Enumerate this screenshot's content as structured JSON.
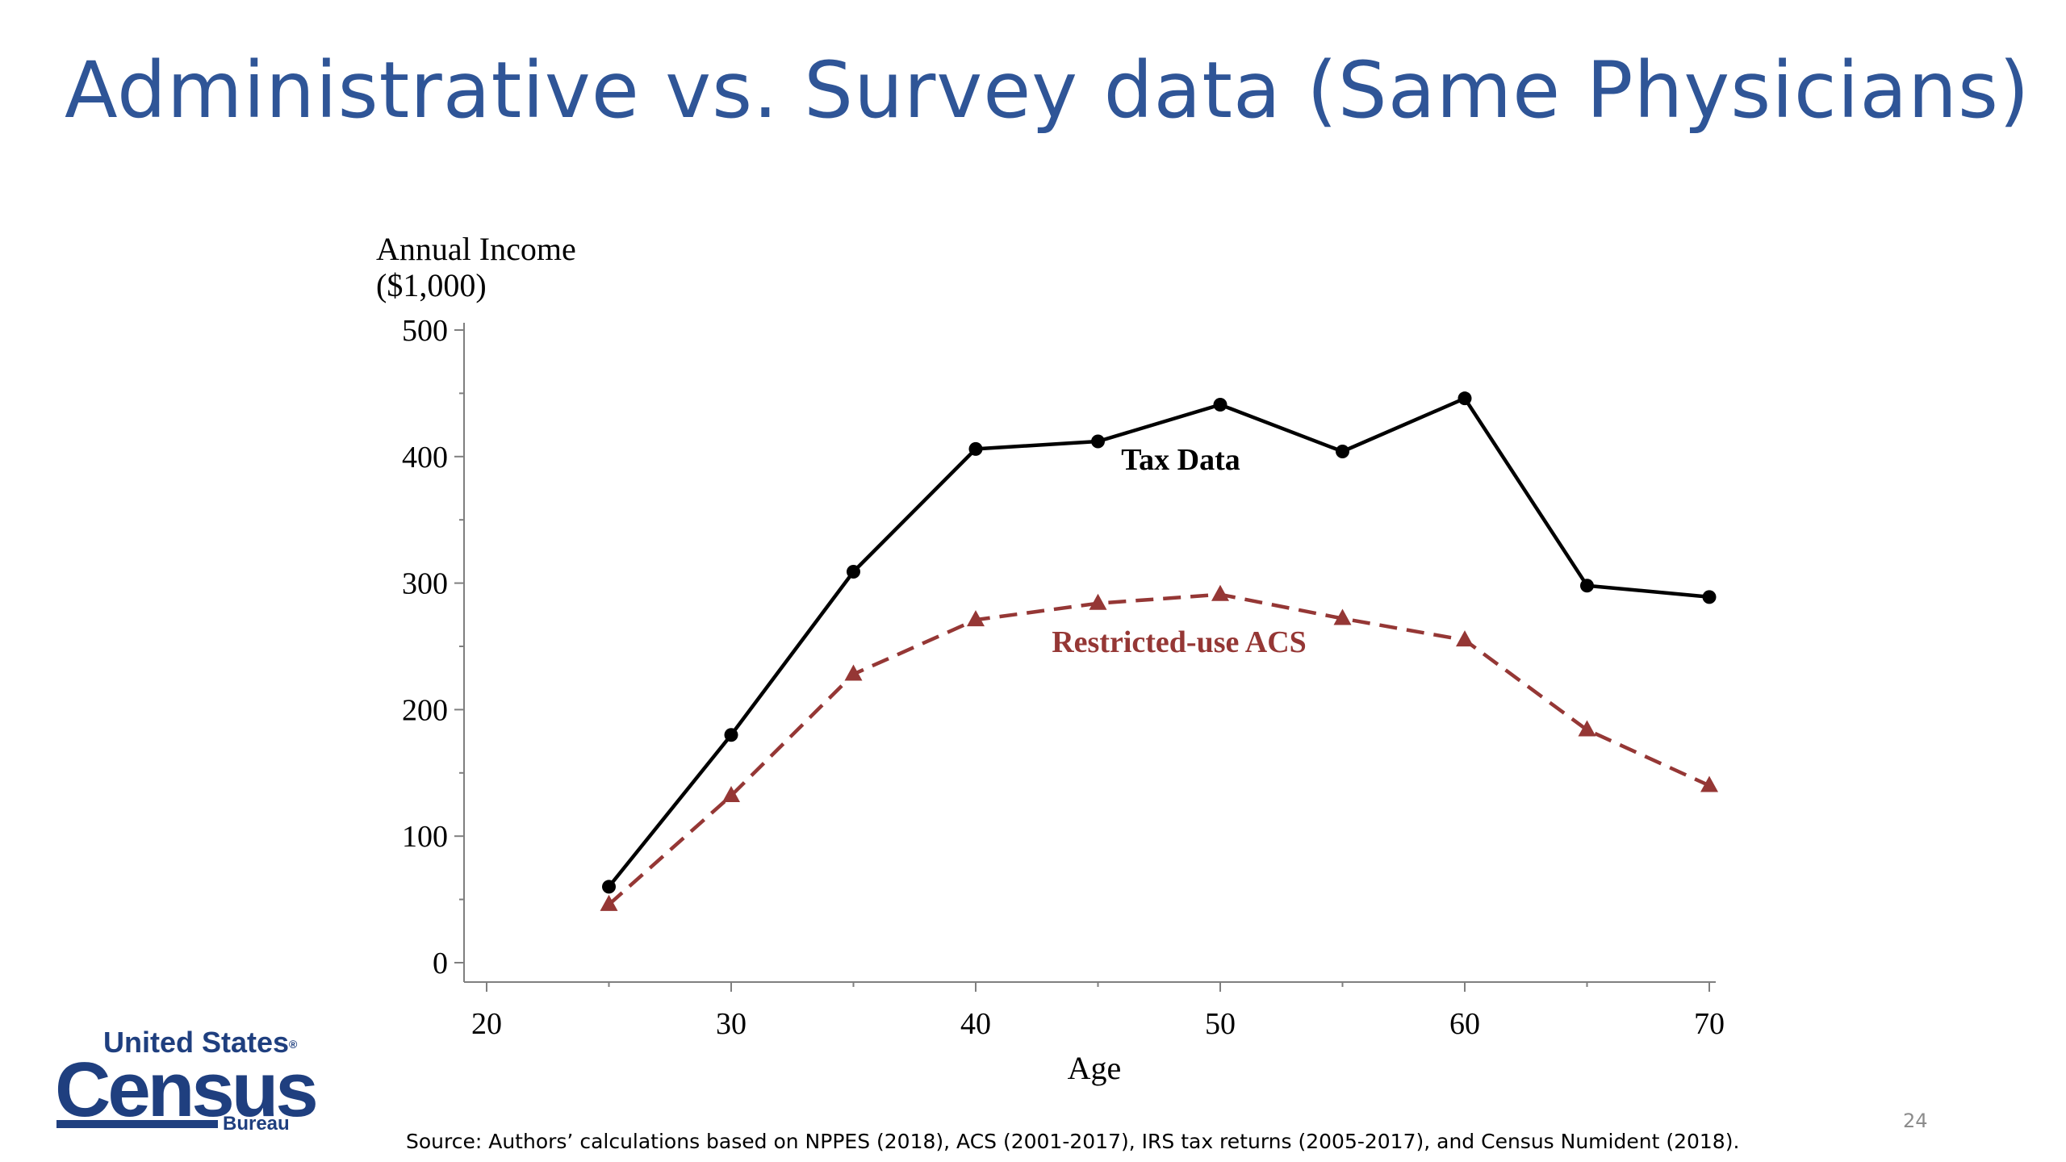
{
  "slide": {
    "title": "Administrative vs. Survey data (Same Physicians)",
    "source_note": "Source: Authors’ calculations based on NPPES (2018), ACS (2001-2017), IRS tax returns (2005-2017), and Census Numident (2018).",
    "slide_number": "24",
    "title_color": "#2f5597"
  },
  "logo": {
    "line1": "United States",
    "registered_mark": "®",
    "wordmark": "Census",
    "line3": "Bureau",
    "color": "#1f3f7f"
  },
  "chart_data": {
    "type": "line",
    "title": "",
    "ylabel_line1": "Annual Income",
    "ylabel_line2": "($1,000)",
    "xlabel": "Age",
    "xlim": [
      20,
      70
    ],
    "ylim": [
      0,
      500
    ],
    "xticks": [
      20,
      30,
      40,
      50,
      60,
      70
    ],
    "yticks": [
      0,
      100,
      200,
      300,
      400,
      500
    ],
    "grid": false,
    "x": [
      25,
      30,
      35,
      40,
      45,
      50,
      55,
      60,
      65,
      70
    ],
    "series": [
      {
        "name": "Tax Data",
        "values": [
          60,
          180,
          309,
          406,
          412,
          441,
          404,
          446,
          298,
          289
        ],
        "color": "#000000",
        "marker": "circle",
        "line_style": "solid"
      },
      {
        "name": "Restricted-use ACS",
        "values": [
          46,
          132,
          228,
          271,
          284,
          291,
          272,
          255,
          184,
          140
        ],
        "color": "#953735",
        "marker": "triangle",
        "line_style": "dashed"
      }
    ]
  }
}
